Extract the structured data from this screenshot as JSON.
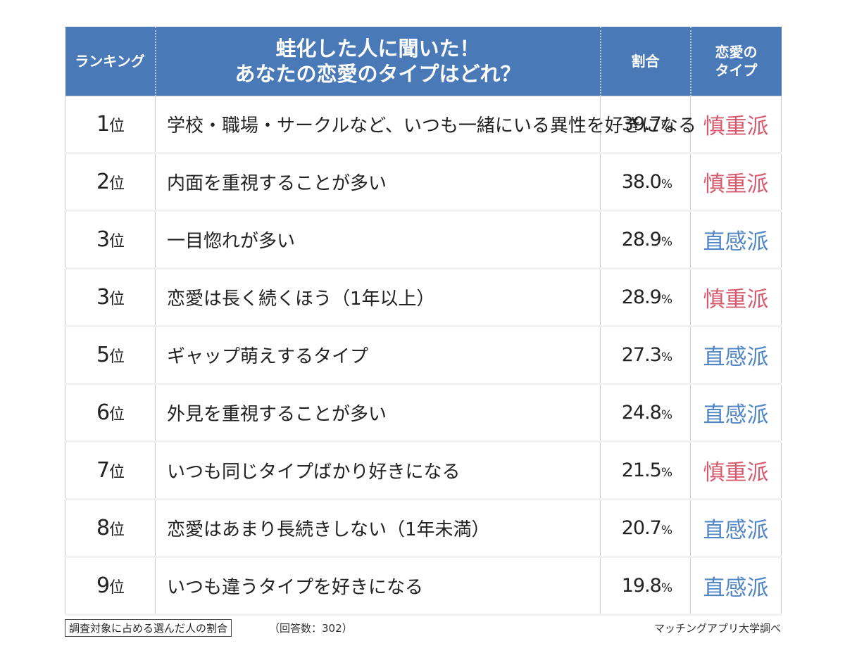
{
  "header": {
    "rank_label": "ランキング",
    "title_line1": "蛙化した人に聞いた！",
    "title_line2": "あなたの恋愛のタイプはどれ？",
    "pct_label": "割合",
    "type_line1": "恋愛の",
    "type_line2": "タイプ"
  },
  "colors": {
    "header_bg": "#4a79b8",
    "cautious": "#d85a6e",
    "intuitive": "#4f86c6"
  },
  "chart_data": {
    "type": "table",
    "columns": [
      "ランキング",
      "蛙化した人に聞いた！あなたの恋愛のタイプはどれ？",
      "割合",
      "恋愛のタイプ"
    ],
    "rows": [
      {
        "rank": "1",
        "rank_unit": "位",
        "item": "学校・職場・サークルなど、いつも一緒にいる異性を好きになる",
        "value": 39.7,
        "value_text": "39.7",
        "unit": "%",
        "type": "慎重派",
        "color": "#d85a6e"
      },
      {
        "rank": "2",
        "rank_unit": "位",
        "item": "内面を重視することが多い",
        "value": 38.0,
        "value_text": "38.0",
        "unit": "%",
        "type": "慎重派",
        "color": "#d85a6e"
      },
      {
        "rank": "3",
        "rank_unit": "位",
        "item": "一目惚れが多い",
        "value": 28.9,
        "value_text": "28.9",
        "unit": "%",
        "type": "直感派",
        "color": "#4f86c6"
      },
      {
        "rank": "3",
        "rank_unit": "位",
        "item": "恋愛は長く続くほう（1年以上）",
        "value": 28.9,
        "value_text": "28.9",
        "unit": "%",
        "type": "慎重派",
        "color": "#d85a6e"
      },
      {
        "rank": "5",
        "rank_unit": "位",
        "item": "ギャップ萌えするタイプ",
        "value": 27.3,
        "value_text": "27.3",
        "unit": "%",
        "type": "直感派",
        "color": "#4f86c6"
      },
      {
        "rank": "6",
        "rank_unit": "位",
        "item": "外見を重視することが多い",
        "value": 24.8,
        "value_text": "24.8",
        "unit": "%",
        "type": "直感派",
        "color": "#4f86c6"
      },
      {
        "rank": "7",
        "rank_unit": "位",
        "item": "いつも同じタイプばかり好きになる",
        "value": 21.5,
        "value_text": "21.5",
        "unit": "%",
        "type": "慎重派",
        "color": "#d85a6e"
      },
      {
        "rank": "8",
        "rank_unit": "位",
        "item": "恋愛はあまり長続きしない（1年未満）",
        "value": 20.7,
        "value_text": "20.7",
        "unit": "%",
        "type": "直感派",
        "color": "#4f86c6"
      },
      {
        "rank": "9",
        "rank_unit": "位",
        "item": "いつも違うタイプを好きになる",
        "value": 19.8,
        "value_text": "19.8",
        "unit": "%",
        "type": "直感派",
        "color": "#4f86c6"
      }
    ]
  },
  "footer": {
    "note": "調査対象に占める選んだ人の割合",
    "respondents": "（回答数：302）",
    "source": "マッチングアプリ大学調べ"
  }
}
